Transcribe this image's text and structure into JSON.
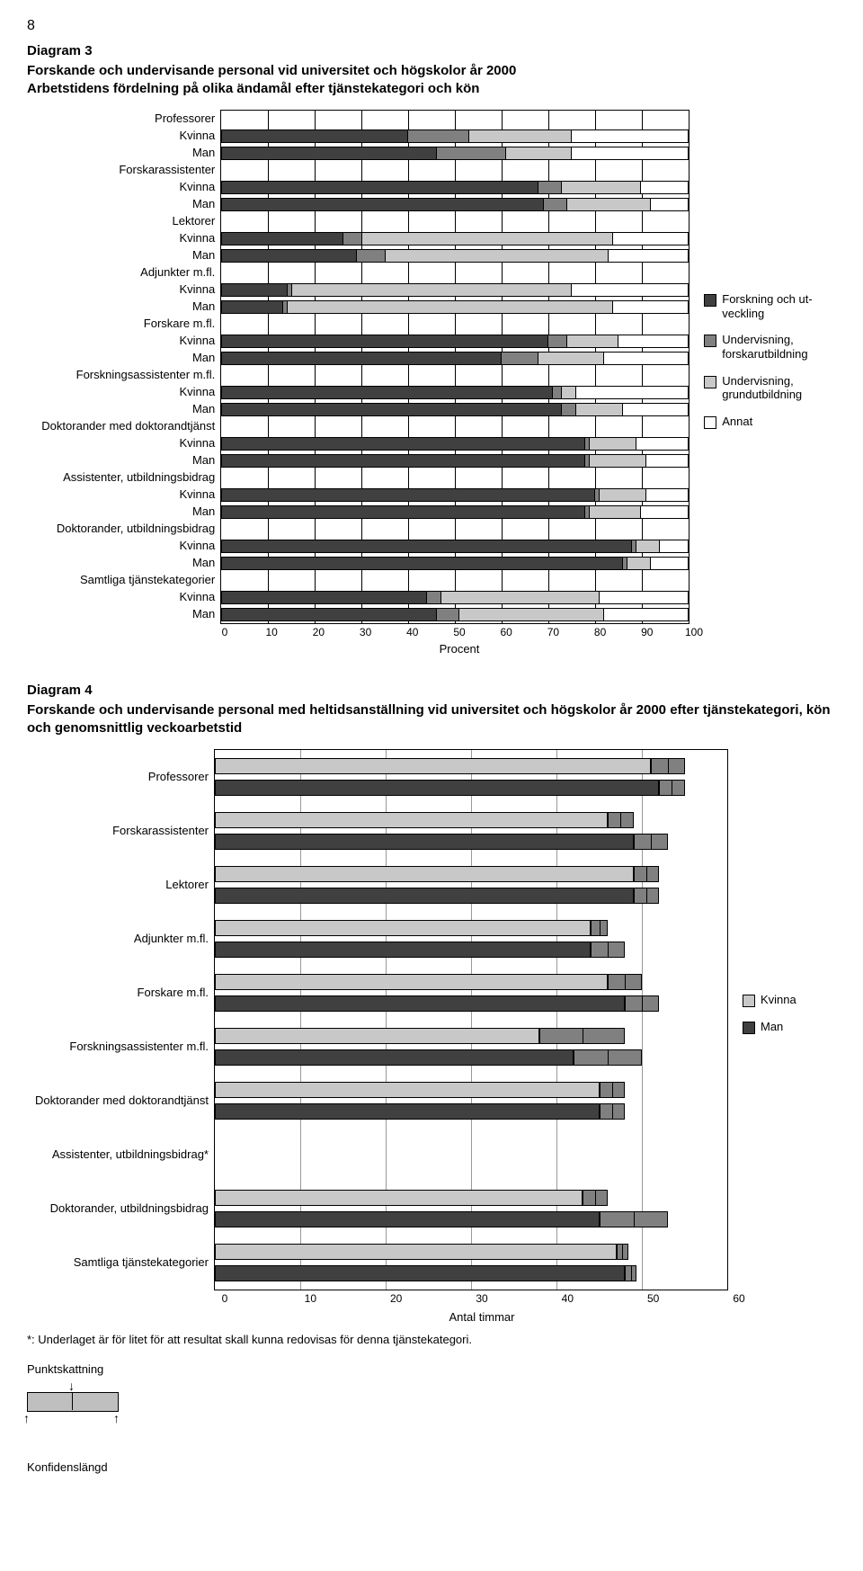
{
  "page_number": "8",
  "chart3": {
    "title": "Diagram 3",
    "subtitle": "Forskande och undervisande personal vid universitet och högskolor år 2000\nArbetstidens fördelning på olika ändamål efter tjänstekategori och kön",
    "type": "stacked-bar-horizontal",
    "xlabel": "Procent",
    "xlim": [
      0,
      100
    ],
    "xtick_step": 10,
    "colors": {
      "forskning": "#404040",
      "forskarutbildning": "#808080",
      "grundutbildning": "#c8c8c8",
      "annat": "#ffffff",
      "border": "#000000",
      "background": "#ffffff"
    },
    "legend": [
      {
        "key": "forskning",
        "label": "Forskning och ut-\nveckling"
      },
      {
        "key": "forskarutbildning",
        "label": "Undervisning,\nforskarutbildning"
      },
      {
        "key": "grundutbildning",
        "label": "Undervisning,\ngrundutbildning"
      },
      {
        "key": "annat",
        "label": "Annat"
      }
    ],
    "rows": [
      {
        "label": "Professorer",
        "type": "group"
      },
      {
        "label": "Kvinna",
        "type": "bar",
        "values": [
          40,
          13,
          22,
          25
        ]
      },
      {
        "label": "Man",
        "type": "bar",
        "values": [
          46,
          15,
          14,
          25
        ]
      },
      {
        "label": "Forskarassistenter",
        "type": "group"
      },
      {
        "label": "Kvinna",
        "type": "bar",
        "values": [
          68,
          5,
          17,
          10
        ]
      },
      {
        "label": "Man",
        "type": "bar",
        "values": [
          69,
          5,
          18,
          8
        ]
      },
      {
        "label": "Lektorer",
        "type": "group"
      },
      {
        "label": "Kvinna",
        "type": "bar",
        "values": [
          26,
          4,
          54,
          16
        ]
      },
      {
        "label": "Man",
        "type": "bar",
        "values": [
          29,
          6,
          48,
          17
        ]
      },
      {
        "label": "Adjunkter m.fl.",
        "type": "group"
      },
      {
        "label": "Kvinna",
        "type": "bar",
        "values": [
          14,
          1,
          60,
          25
        ]
      },
      {
        "label": "Man",
        "type": "bar",
        "values": [
          13,
          1,
          70,
          16
        ]
      },
      {
        "label": "Forskare m.fl.",
        "type": "group"
      },
      {
        "label": "Kvinna",
        "type": "bar",
        "values": [
          70,
          4,
          11,
          15
        ]
      },
      {
        "label": "Man",
        "type": "bar",
        "values": [
          60,
          8,
          14,
          18
        ]
      },
      {
        "label": "Forskningsassistenter m.fl.",
        "type": "group"
      },
      {
        "label": "Kvinna",
        "type": "bar",
        "values": [
          71,
          2,
          3,
          24
        ]
      },
      {
        "label": "Man",
        "type": "bar",
        "values": [
          73,
          3,
          10,
          14
        ]
      },
      {
        "label": "Doktorander med doktorandtjänst",
        "type": "group"
      },
      {
        "label": "Kvinna",
        "type": "bar",
        "values": [
          78,
          1,
          10,
          11
        ]
      },
      {
        "label": "Man",
        "type": "bar",
        "values": [
          78,
          1,
          12,
          9
        ]
      },
      {
        "label": "Assistenter, utbildningsbidrag",
        "type": "group"
      },
      {
        "label": "Kvinna",
        "type": "bar",
        "values": [
          80,
          1,
          10,
          9
        ]
      },
      {
        "label": "Man",
        "type": "bar",
        "values": [
          78,
          1,
          11,
          10
        ]
      },
      {
        "label": "Doktorander, utbildningsbidrag",
        "type": "group"
      },
      {
        "label": "Kvinna",
        "type": "bar",
        "values": [
          88,
          1,
          5,
          6
        ]
      },
      {
        "label": "Man",
        "type": "bar",
        "values": [
          86,
          1,
          5,
          8
        ]
      },
      {
        "label": "Samtliga tjänstekategorier",
        "type": "group"
      },
      {
        "label": "Kvinna",
        "type": "bar",
        "values": [
          44,
          3,
          34,
          19
        ]
      },
      {
        "label": "Man",
        "type": "bar",
        "values": [
          46,
          5,
          31,
          18
        ]
      }
    ]
  },
  "chart4": {
    "title": "Diagram 4",
    "subtitle": "Forskande och undervisande personal med heltidsanställning vid universitet och högskolor år 2000 efter tjänstekategori, kön och genomsnittlig veckoarbetstid",
    "type": "grouped-bar-horizontal-ci",
    "xlabel": "Antal timmar",
    "xlim": [
      0,
      60
    ],
    "xtick_step": 10,
    "colors": {
      "kvinna": "#c8c8c8",
      "man": "#404040",
      "ci": "#808080",
      "border": "#000000",
      "grid": "#999999",
      "background": "#ffffff"
    },
    "legend": [
      {
        "key": "kvinna",
        "label": "Kvinna"
      },
      {
        "key": "man",
        "label": "Man"
      }
    ],
    "groups": [
      {
        "label": "Professorer",
        "bars": [
          {
            "series": "kvinna",
            "low": 51,
            "point": 53,
            "high": 55
          },
          {
            "series": "man",
            "low": 52,
            "point": 53.5,
            "high": 55
          }
        ]
      },
      {
        "label": "Forskarassistenter",
        "bars": [
          {
            "series": "kvinna",
            "low": 46,
            "point": 47.5,
            "high": 49
          },
          {
            "series": "man",
            "low": 49,
            "point": 51,
            "high": 53
          }
        ]
      },
      {
        "label": "Lektorer",
        "bars": [
          {
            "series": "kvinna",
            "low": 49,
            "point": 50.5,
            "high": 52
          },
          {
            "series": "man",
            "low": 49,
            "point": 50.5,
            "high": 52
          }
        ]
      },
      {
        "label": "Adjunkter m.fl.",
        "bars": [
          {
            "series": "kvinna",
            "low": 44,
            "point": 45,
            "high": 46
          },
          {
            "series": "man",
            "low": 44,
            "point": 46,
            "high": 48
          }
        ]
      },
      {
        "label": "Forskare m.fl.",
        "bars": [
          {
            "series": "kvinna",
            "low": 46,
            "point": 48,
            "high": 50
          },
          {
            "series": "man",
            "low": 48,
            "point": 50,
            "high": 52
          }
        ]
      },
      {
        "label": "Forskningsassistenter m.fl.",
        "bars": [
          {
            "series": "kvinna",
            "low": 38,
            "point": 43,
            "high": 48
          },
          {
            "series": "man",
            "low": 42,
            "point": 46,
            "high": 50
          }
        ]
      },
      {
        "label": "Doktorander med doktorandtjänst",
        "bars": [
          {
            "series": "kvinna",
            "low": 45,
            "point": 46.5,
            "high": 48
          },
          {
            "series": "man",
            "low": 45,
            "point": 46.5,
            "high": 48
          }
        ]
      },
      {
        "label": "Assistenter, utbildningsbidrag*",
        "bars": [
          {
            "series": "kvinna",
            "low": 0,
            "point": 0,
            "high": 0
          },
          {
            "series": "man",
            "low": 0,
            "point": 0,
            "high": 0
          }
        ]
      },
      {
        "label": "Doktorander,  utbildningsbidrag",
        "bars": [
          {
            "series": "kvinna",
            "low": 43,
            "point": 44.5,
            "high": 46
          },
          {
            "series": "man",
            "low": 45,
            "point": 49,
            "high": 53
          }
        ]
      },
      {
        "label": "Samtliga tjänstekategorier",
        "bars": [
          {
            "series": "kvinna",
            "low": 47,
            "point": 47.7,
            "high": 48.4
          },
          {
            "series": "man",
            "low": 48,
            "point": 48.7,
            "high": 49.4
          }
        ]
      }
    ]
  },
  "footnote": "*: Underlaget är för litet för att resultat skall kunna redovisas för denna tjänstekategori.",
  "ci_key": {
    "punkt": "Punktskattning",
    "konf": "Konfidenslängd"
  }
}
